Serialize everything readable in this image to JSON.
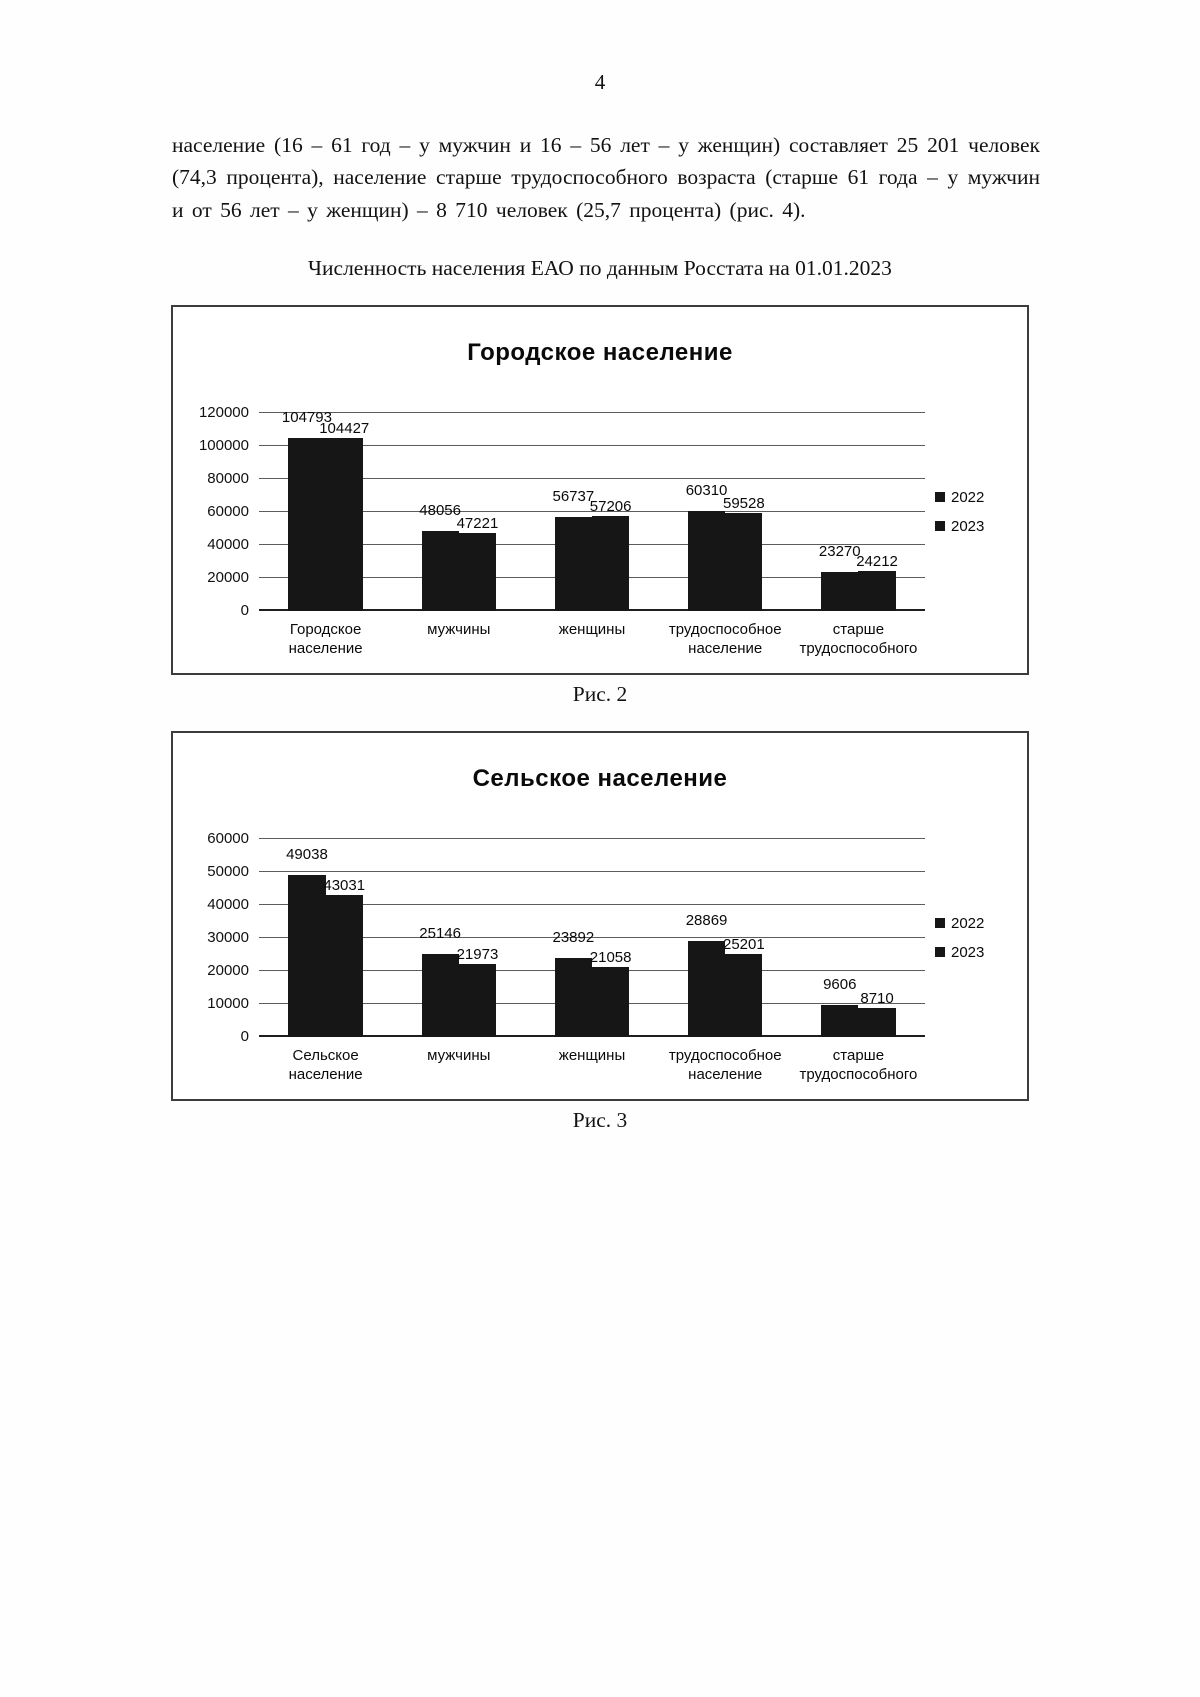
{
  "page": {
    "number": "4",
    "paragraph": "население (16 – 61 год – у мужчин и 16 – 56 лет – у женщин) составляет 25 201 человек (74,3 процента), население старше трудоспособного возраста (старше 61 года – у мужчин и от 56 лет – у женщин) – 8 710 человек (25,7 процента) (рис. 4).",
    "section_title": "Численность населения ЕАО по данным Росстата на 01.01.2023",
    "fig2_caption": "Рис. 2",
    "fig3_caption": "Рис. 3"
  },
  "chart_data": [
    {
      "type": "bar",
      "title": "Городское население",
      "categories": [
        "Городское население",
        "мужчины",
        "женщины",
        "трудоспособное население",
        "старше трудоспособного"
      ],
      "series": [
        {
          "name": "2022",
          "values": [
            104793,
            48056,
            56737,
            60310,
            23270
          ]
        },
        {
          "name": "2023",
          "values": [
            104427,
            47221,
            57206,
            59528,
            24212
          ]
        }
      ],
      "ylim": [
        0,
        120000
      ],
      "ytick_step": 20000,
      "grid": true,
      "legend_position": "right",
      "bar_color": "#161616"
    },
    {
      "type": "bar",
      "title": "Сельское население",
      "categories": [
        "Сельское население",
        "мужчины",
        "женщины",
        "трудоспособное население",
        "старше трудоспособного"
      ],
      "series": [
        {
          "name": "2022",
          "values": [
            49038,
            25146,
            23892,
            28869,
            9606
          ]
        },
        {
          "name": "2023",
          "values": [
            43031,
            21973,
            21058,
            25201,
            8710
          ]
        }
      ],
      "ylim": [
        0,
        60000
      ],
      "ytick_step": 10000,
      "grid": true,
      "legend_position": "right",
      "bar_color": "#161616"
    }
  ]
}
